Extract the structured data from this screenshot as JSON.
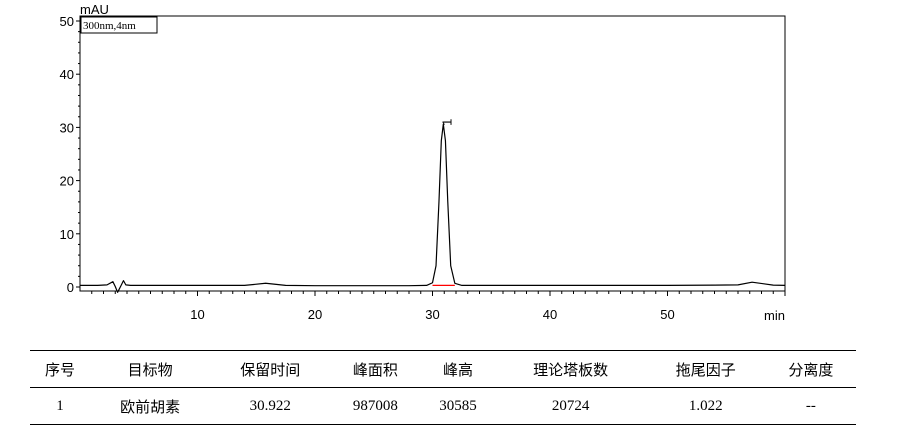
{
  "chart_data": {
    "type": "line",
    "series": [
      {
        "x": [
          0,
          1.5,
          2.3,
          2.8,
          3.0,
          3.2,
          3.5,
          3.7,
          3.9,
          4.3,
          6,
          10,
          14,
          15.8,
          17.5,
          20,
          24,
          28,
          29.5,
          30.0,
          30.3,
          30.55,
          30.75,
          30.92,
          31.1,
          31.3,
          31.55,
          31.9,
          32.5,
          36,
          40,
          45,
          50,
          54,
          56,
          57.2,
          58.2,
          59,
          60
        ],
        "y": [
          0.3,
          0.3,
          0.4,
          1.0,
          0.1,
          -1.0,
          0.3,
          1.2,
          0.4,
          0.3,
          0.3,
          0.3,
          0.3,
          0.7,
          0.3,
          0.25,
          0.25,
          0.25,
          0.3,
          0.8,
          4.0,
          16.0,
          27.5,
          30.6,
          27.5,
          16.0,
          4.0,
          0.7,
          0.3,
          0.3,
          0.3,
          0.3,
          0.3,
          0.35,
          0.4,
          0.9,
          0.6,
          0.35,
          0.3
        ]
      }
    ],
    "xlim": [
      0,
      60
    ],
    "ylim": [
      -2,
      50
    ],
    "xticks": [
      10,
      20,
      30,
      40,
      50
    ],
    "yticks": [
      0,
      10,
      20,
      30,
      40,
      50
    ],
    "xlabel": "min",
    "ylabel": "mAU",
    "legend": "300nm,4nm",
    "peak_label": "1",
    "peak": {
      "start": 30.0,
      "end": 31.9,
      "apex_x": 30.92,
      "apex_y": 30.6
    },
    "colors": {
      "trace": "#000000",
      "baseline": "#ff0000"
    },
    "grid": false
  },
  "table": {
    "headers": [
      "序号",
      "目标物",
      "保留时间",
      "峰面积",
      "峰高",
      "理论塔板数",
      "拖尾因子",
      "分离度"
    ],
    "rows": [
      [
        "1",
        "欧前胡素",
        "30.922",
        "987008",
        "30585",
        "20724",
        "1.022",
        "--"
      ]
    ]
  }
}
